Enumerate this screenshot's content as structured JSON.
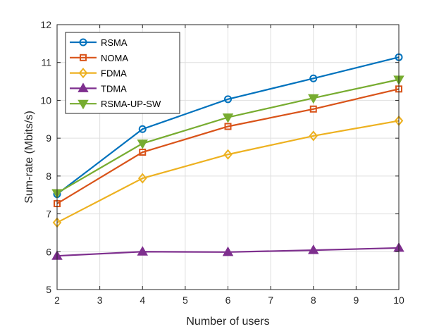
{
  "chart_data": {
    "type": "line",
    "title": "",
    "xlabel": "Number of users",
    "ylabel": "Sum-rate (Mbits/s)",
    "xlim": [
      2,
      10
    ],
    "ylim": [
      5,
      12
    ],
    "xticks": [
      "2",
      "3",
      "4",
      "5",
      "6",
      "7",
      "8",
      "9",
      "10"
    ],
    "yticks": [
      "5",
      "6",
      "7",
      "8",
      "9",
      "10",
      "11",
      "12"
    ],
    "grid": true,
    "legend_position": "top-left",
    "x": [
      2,
      4,
      6,
      8,
      10
    ],
    "series": [
      {
        "name": "RSMA",
        "color": "#0072BD",
        "marker": "circle",
        "values": [
          7.52,
          9.24,
          10.03,
          10.58,
          11.14
        ]
      },
      {
        "name": "NOMA",
        "color": "#D95319",
        "marker": "square",
        "values": [
          7.27,
          8.63,
          9.31,
          9.77,
          10.3
        ]
      },
      {
        "name": "FDMA",
        "color": "#EDB120",
        "marker": "diamond",
        "values": [
          6.77,
          7.94,
          8.57,
          9.06,
          9.46
        ]
      },
      {
        "name": "TDMA",
        "color": "#7E2F8E",
        "marker": "triangle-up",
        "values": [
          5.89,
          6.0,
          5.99,
          6.04,
          6.1
        ]
      },
      {
        "name": "RSMA-UP-SW",
        "color": "#77AC30",
        "marker": "triangle-down",
        "values": [
          7.55,
          8.86,
          9.55,
          10.06,
          10.55
        ]
      }
    ]
  }
}
